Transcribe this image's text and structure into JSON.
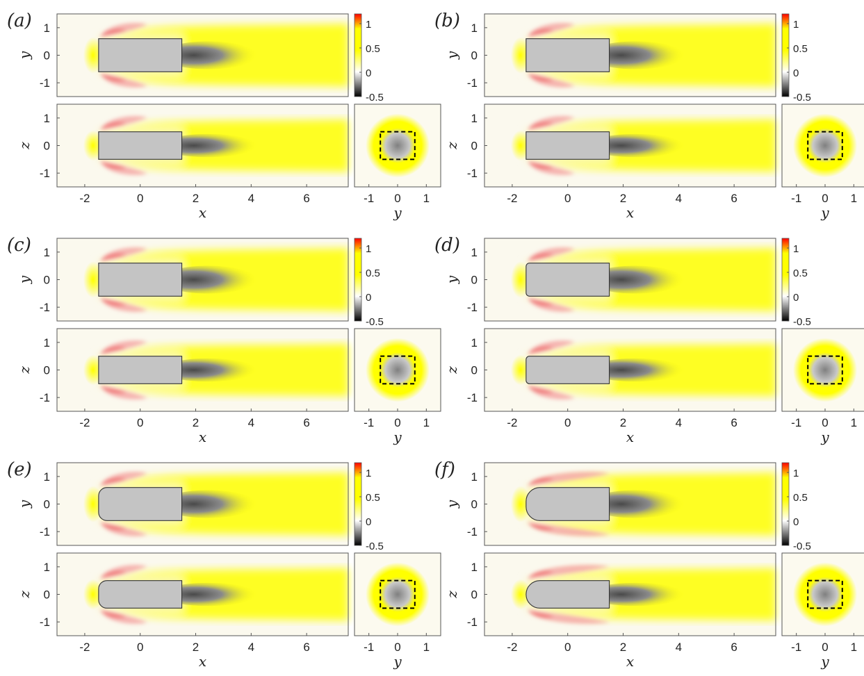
{
  "chart_data": {
    "type": "heatmap",
    "colorbar": {
      "ticks": [
        1,
        0.5,
        0,
        -0.5
      ],
      "tick_labels": [
        "1",
        "0.5",
        "0",
        "-0.5"
      ],
      "range": [
        -0.5,
        1.2
      ],
      "colors": [
        "#000000",
        "#ffffff",
        "#ffff00",
        "#ff0000"
      ]
    },
    "x_range": [
      -3,
      7.5
    ],
    "y_range": [
      -1.5,
      1.5
    ],
    "z_range": [
      -1.5,
      1.5
    ],
    "cross_section_y_range": [
      -1.5,
      1.5
    ],
    "x_ticks": [
      -2,
      0,
      2,
      4,
      6
    ],
    "x_tick_labels": [
      "-2",
      "0",
      "2",
      "4",
      "6"
    ],
    "y_ticks": [
      1,
      0,
      -1
    ],
    "y_tick_labels": [
      "1",
      "0",
      "-1"
    ],
    "cs_ticks": [
      -1,
      0,
      1
    ],
    "cs_tick_labels": [
      "-1",
      "0",
      "1"
    ],
    "axis_labels": {
      "x": "x",
      "y": "y",
      "z": "z"
    },
    "body": {
      "x_front": -1.5,
      "x_back": 1.5,
      "half_width_y": 0.6,
      "half_width_z": 0.5
    },
    "panels": [
      {
        "label": "(a)",
        "nose_radius": 0.0
      },
      {
        "label": "(b)",
        "nose_radius": 0.0
      },
      {
        "label": "(c)",
        "nose_radius": 0.0
      },
      {
        "label": "(d)",
        "nose_radius": 0.12
      },
      {
        "label": "(e)",
        "nose_radius": 0.3
      },
      {
        "label": "(f)",
        "nose_radius": 0.5
      }
    ]
  }
}
